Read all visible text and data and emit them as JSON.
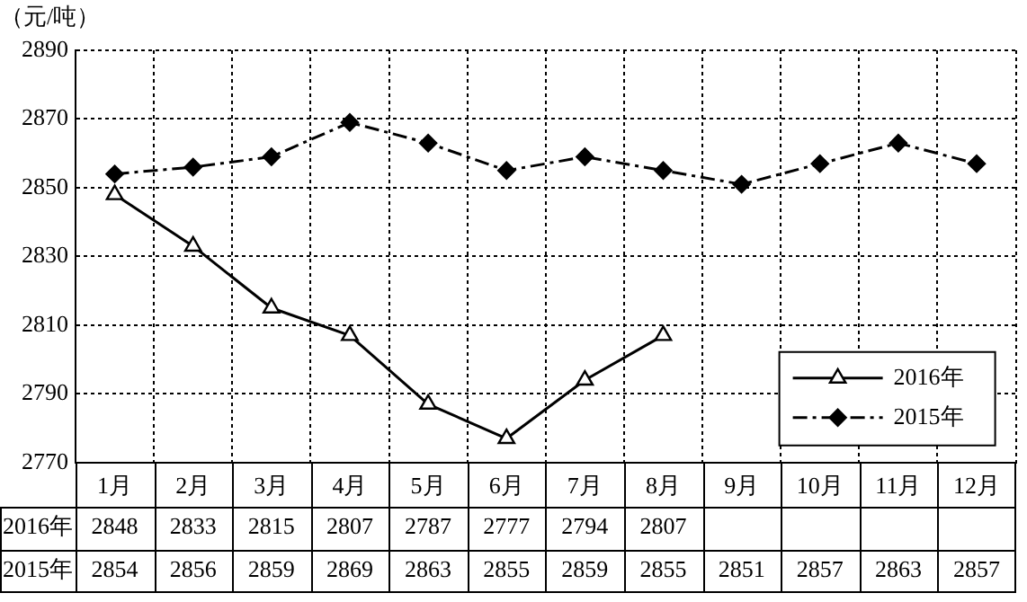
{
  "chart_data": {
    "type": "line",
    "ylabel": "（元/吨）",
    "categories": [
      "1月",
      "2月",
      "3月",
      "4月",
      "5月",
      "6月",
      "7月",
      "8月",
      "9月",
      "10月",
      "11月",
      "12月"
    ],
    "series": [
      {
        "name": "2016年",
        "color": "#000000",
        "marker": "triangle",
        "line_style": "solid",
        "values": [
          2848,
          2833,
          2815,
          2807,
          2787,
          2777,
          2794,
          2807,
          null,
          null,
          null,
          null
        ]
      },
      {
        "name": "2015年",
        "color": "#000000",
        "marker": "diamond",
        "line_style": "dashed",
        "values": [
          2854,
          2856,
          2859,
          2869,
          2863,
          2855,
          2859,
          2855,
          2851,
          2857,
          2863,
          2857
        ]
      }
    ],
    "ylim": [
      2770,
      2890
    ],
    "yticks": [
      2770,
      2790,
      2810,
      2830,
      2850,
      2870,
      2890
    ],
    "grid": true,
    "legend": "bottom right",
    "data_labels": true
  }
}
